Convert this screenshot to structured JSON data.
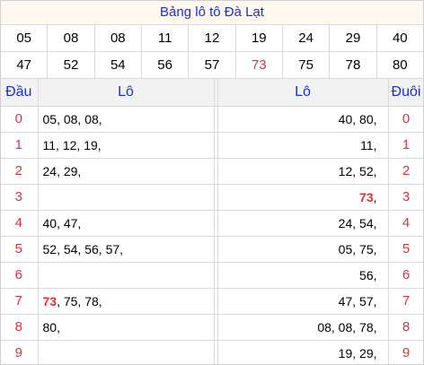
{
  "title": "Bảng lô tô Đà Lạt",
  "numbers_row1": [
    "05",
    "08",
    "08",
    "11",
    "12",
    "19",
    "24",
    "29",
    "40"
  ],
  "numbers_row2": [
    "47",
    "52",
    "54",
    "56",
    "57",
    "73",
    "75",
    "78",
    "80"
  ],
  "highlight_number": "73",
  "headers": {
    "dau": "Đầu",
    "lo_left": "Lô",
    "lo_right": "Lô",
    "duoi": "Đuôi"
  },
  "rows": [
    {
      "dau": "0",
      "lo_dau": "05, 08, 08,",
      "lo_duoi": "40, 80,",
      "duoi": "0"
    },
    {
      "dau": "1",
      "lo_dau": "11, 12, 19,",
      "lo_duoi": "11,",
      "duoi": "1"
    },
    {
      "dau": "2",
      "lo_dau": "24, 29,",
      "lo_duoi": "12, 52,",
      "duoi": "2"
    },
    {
      "dau": "3",
      "lo_dau": "",
      "lo_duoi": "73,",
      "duoi": "3"
    },
    {
      "dau": "4",
      "lo_dau": "40, 47,",
      "lo_duoi": "24, 54,",
      "duoi": "4"
    },
    {
      "dau": "5",
      "lo_dau": "52, 54, 56, 57,",
      "lo_duoi": "05, 75,",
      "duoi": "5"
    },
    {
      "dau": "6",
      "lo_dau": "",
      "lo_duoi": "56,",
      "duoi": "6"
    },
    {
      "dau": "7",
      "lo_dau": "73, 75, 78,",
      "lo_duoi": "47, 57,",
      "duoi": "7"
    },
    {
      "dau": "8",
      "lo_dau": "80,",
      "lo_duoi": "08, 08, 78,",
      "duoi": "8"
    },
    {
      "dau": "9",
      "lo_dau": "",
      "lo_duoi": "19, 29,",
      "duoi": "9"
    }
  ],
  "colors": {
    "title_blue": "#1a2fd6",
    "red": "#e0313b",
    "title_bg": "#fff8ef",
    "header_bg": "#f2f2f2"
  }
}
